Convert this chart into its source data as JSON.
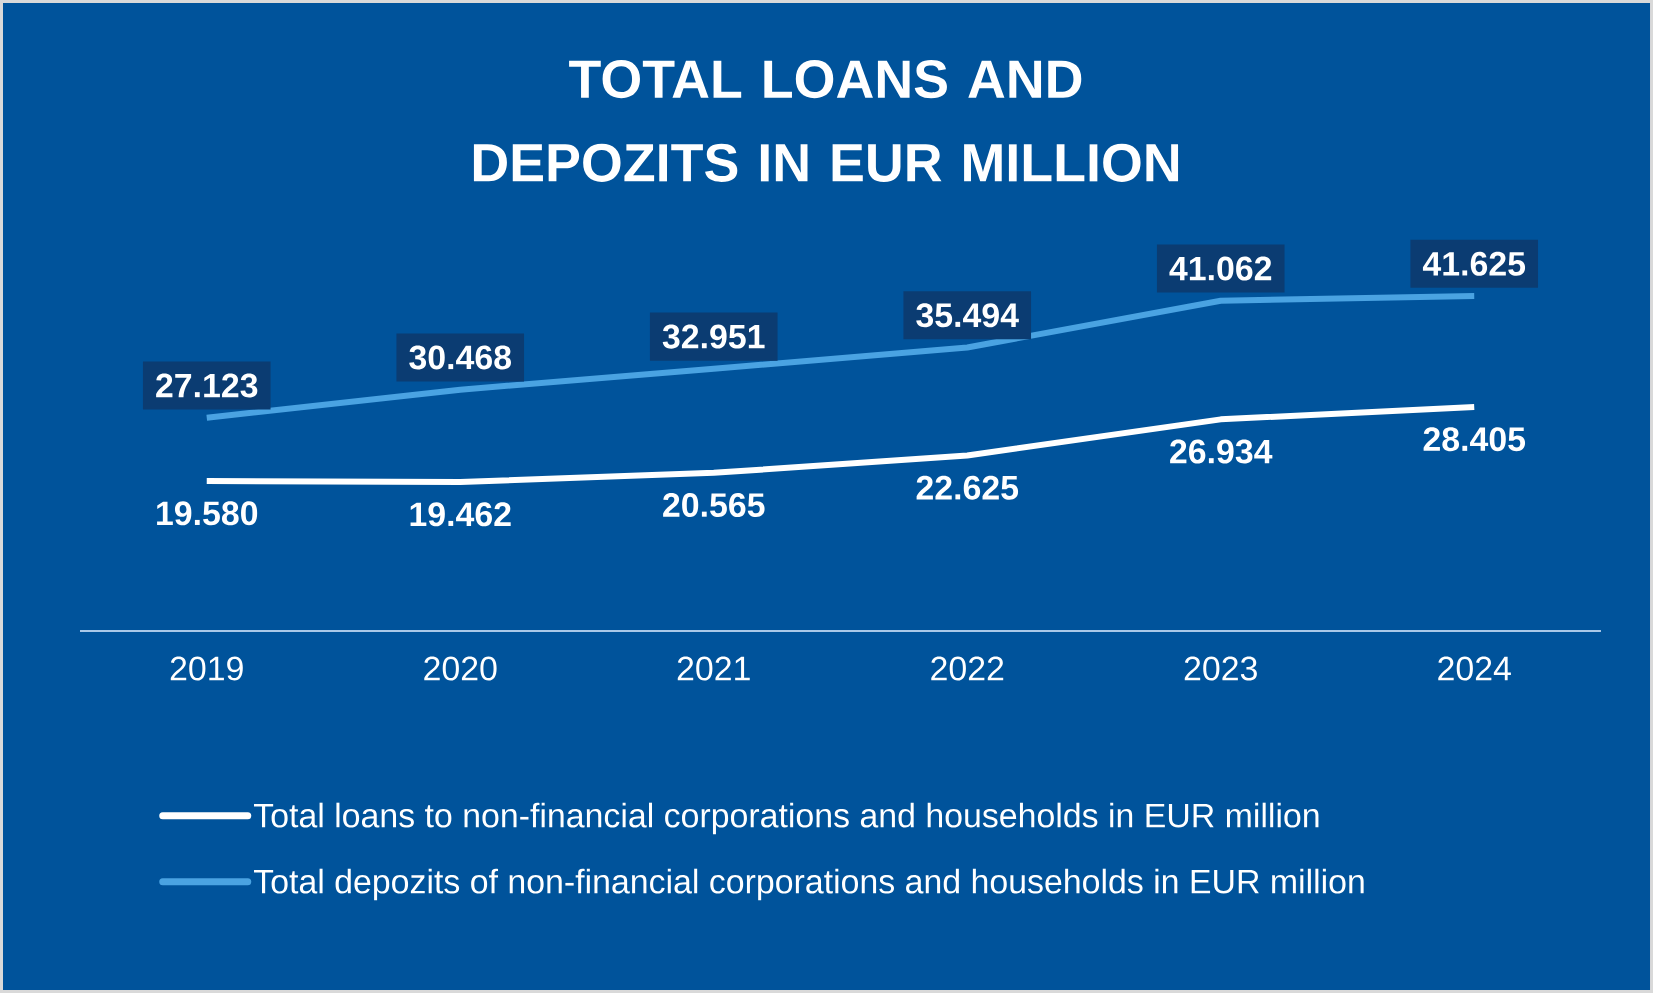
{
  "chart_data": {
    "type": "line",
    "title": "TOTAL LOANS AND DEPOZITS IN EUR MILLION",
    "categories": [
      "2019",
      "2020",
      "2021",
      "2022",
      "2023",
      "2024"
    ],
    "series": [
      {
        "name": "Total loans to non-financial corporations and households in EUR million",
        "color": "#ffffff",
        "values": [
          19580,
          19462,
          20565,
          22625,
          26934,
          28405
        ],
        "value_labels": [
          "19.580",
          "19.462",
          "20.565",
          "22.625",
          "26.934",
          "28.405"
        ]
      },
      {
        "name": "Total depozits of non-financial corporations and households in EUR million",
        "color": "#4aa3e2",
        "values": [
          27123,
          30468,
          32951,
          35494,
          41062,
          41625
        ],
        "value_labels": [
          "27.123",
          "30.468",
          "32.951",
          "35.494",
          "41.062",
          "41.625"
        ]
      }
    ],
    "tick_labels": "x",
    "legend": "bottom"
  }
}
